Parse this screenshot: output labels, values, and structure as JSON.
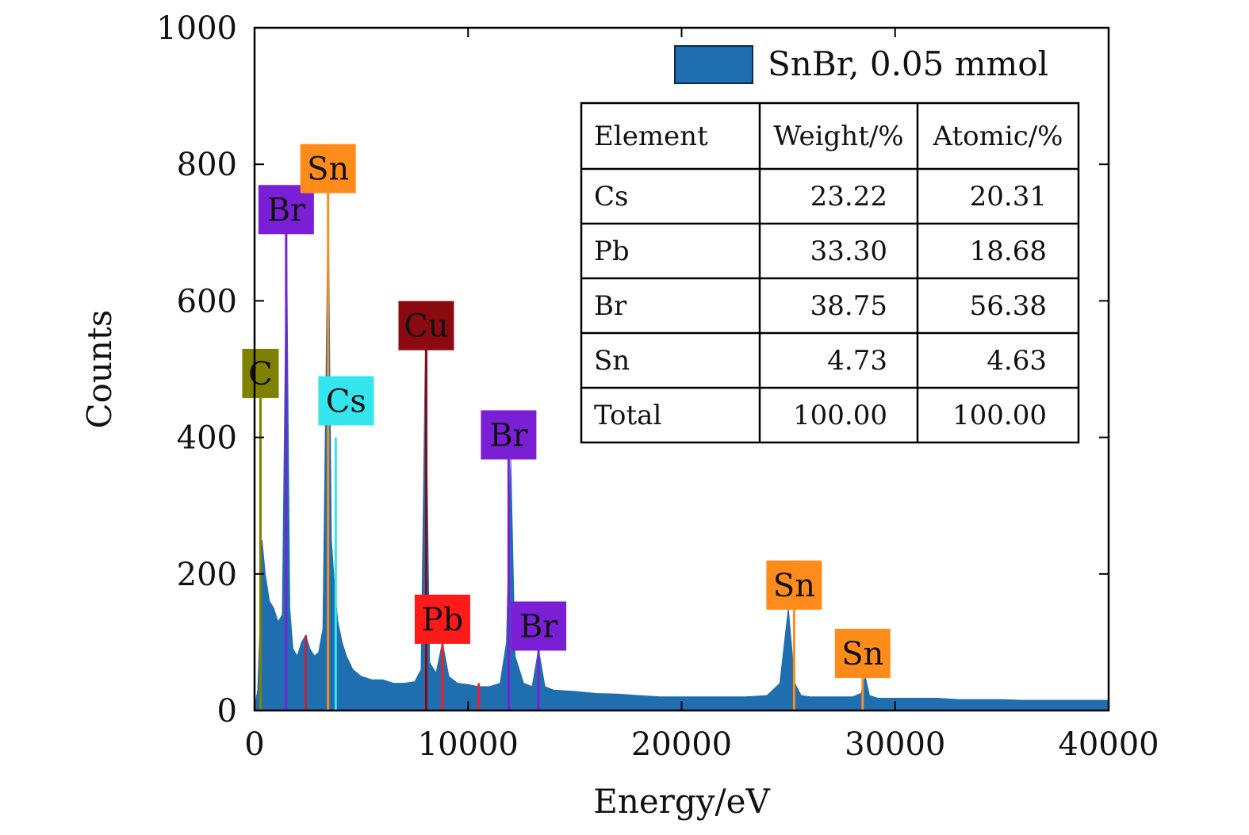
{
  "chart_data": {
    "type": "area",
    "xlabel": "Energy/eV",
    "ylabel": "Counts",
    "xlim": [
      0,
      40000
    ],
    "ylim": [
      0,
      1000
    ],
    "x_ticks": [
      0,
      10000,
      20000,
      30000,
      40000
    ],
    "y_ticks": [
      0,
      200,
      400,
      600,
      800,
      1000
    ],
    "grid": false,
    "legend_position": "top-right",
    "series": [
      {
        "name": "SnBr, 0.05 mmol",
        "color": "#1f6fb0",
        "x": [
          0,
          150,
          250,
          350,
          500,
          700,
          900,
          1100,
          1300,
          1500,
          1650,
          1800,
          2000,
          2200,
          2400,
          2600,
          2800,
          3000,
          3200,
          3450,
          3600,
          3750,
          3900,
          4100,
          4300,
          4600,
          5000,
          5500,
          6000,
          6500,
          7000,
          7500,
          7800,
          8000,
          8200,
          8500,
          8800,
          9100,
          9500,
          10000,
          10500,
          11000,
          11500,
          11800,
          12000,
          12200,
          12600,
          13000,
          13300,
          13600,
          14000,
          15000,
          16000,
          17000,
          18000,
          19000,
          20000,
          21000,
          22000,
          23000,
          24000,
          24600,
          25000,
          25300,
          25600,
          26000,
          27000,
          28000,
          28400,
          28600,
          28800,
          29200,
          30000,
          31000,
          32000,
          33000,
          34000,
          35000,
          36000,
          37000,
          38000,
          39000,
          40000
        ],
        "values": [
          5,
          30,
          120,
          250,
          200,
          160,
          150,
          130,
          140,
          700,
          150,
          90,
          80,
          100,
          110,
          90,
          80,
          85,
          120,
          760,
          250,
          180,
          130,
          100,
          80,
          60,
          50,
          45,
          45,
          40,
          40,
          42,
          60,
          530,
          70,
          55,
          100,
          50,
          40,
          38,
          35,
          35,
          40,
          100,
          370,
          80,
          40,
          35,
          90,
          35,
          30,
          28,
          25,
          24,
          22,
          20,
          20,
          20,
          20,
          20,
          22,
          40,
          150,
          40,
          22,
          20,
          20,
          20,
          25,
          50,
          22,
          18,
          18,
          18,
          18,
          16,
          16,
          16,
          15,
          15,
          15,
          15,
          15
        ]
      }
    ],
    "peak_labels": [
      {
        "text": "C",
        "energy": 277,
        "height": 460,
        "color": "#808000"
      },
      {
        "text": "Br",
        "energy": 1480,
        "height": 700,
        "color": "#7a1fd6"
      },
      {
        "text": "Sn",
        "energy": 3444,
        "height": 760,
        "color": "#ff8c1a"
      },
      {
        "text": "Cs",
        "energy": 4286,
        "height": 420,
        "color": "#33e6ee"
      },
      {
        "text": "Cu",
        "energy": 8040,
        "height": 530,
        "color": "#8b0a10"
      },
      {
        "text": "Pb",
        "energy": 8800,
        "height": 100,
        "color": "#ff1a1a"
      },
      {
        "text": "Br",
        "energy": 11900,
        "height": 370,
        "color": "#7a1fd6"
      },
      {
        "text": "Br",
        "energy": 13300,
        "height": 90,
        "color": "#7a1fd6"
      },
      {
        "text": "Sn",
        "energy": 25270,
        "height": 150,
        "color": "#ff8c1a"
      },
      {
        "text": "Sn",
        "energy": 28480,
        "height": 50,
        "color": "#ff8c1a"
      }
    ],
    "marker_lines": [
      {
        "energy": 277,
        "height": 460,
        "color": "#808000"
      },
      {
        "energy": 1480,
        "height": 700,
        "color": "#7a1fd6"
      },
      {
        "energy": 2400,
        "height": 110,
        "color": "#c0243a"
      },
      {
        "energy": 3444,
        "height": 760,
        "color": "#ff8c1a"
      },
      {
        "energy": 3800,
        "height": 400,
        "color": "#33e6ee"
      },
      {
        "energy": 8040,
        "height": 530,
        "color": "#8b0a10"
      },
      {
        "energy": 8800,
        "height": 100,
        "color": "#ff1a1a"
      },
      {
        "energy": 10500,
        "height": 40,
        "color": "#ff1a1a"
      },
      {
        "energy": 11900,
        "height": 370,
        "color": "#7a1fd6"
      },
      {
        "energy": 13300,
        "height": 90,
        "color": "#7a1fd6"
      },
      {
        "energy": 25270,
        "height": 150,
        "color": "#ff8c1a"
      },
      {
        "energy": 28480,
        "height": 50,
        "color": "#ff8c1a"
      }
    ],
    "inset_table": {
      "headers": [
        "Element",
        "Weight/%",
        "Atomic/%"
      ],
      "rows": [
        [
          "Cs",
          "23.22",
          "20.31"
        ],
        [
          "Pb",
          "33.30",
          "18.68"
        ],
        [
          "Br",
          "38.75",
          "56.38"
        ],
        [
          "Sn",
          "4.73",
          "4.63"
        ],
        [
          "Total",
          "100.00",
          "100.00"
        ]
      ]
    }
  }
}
